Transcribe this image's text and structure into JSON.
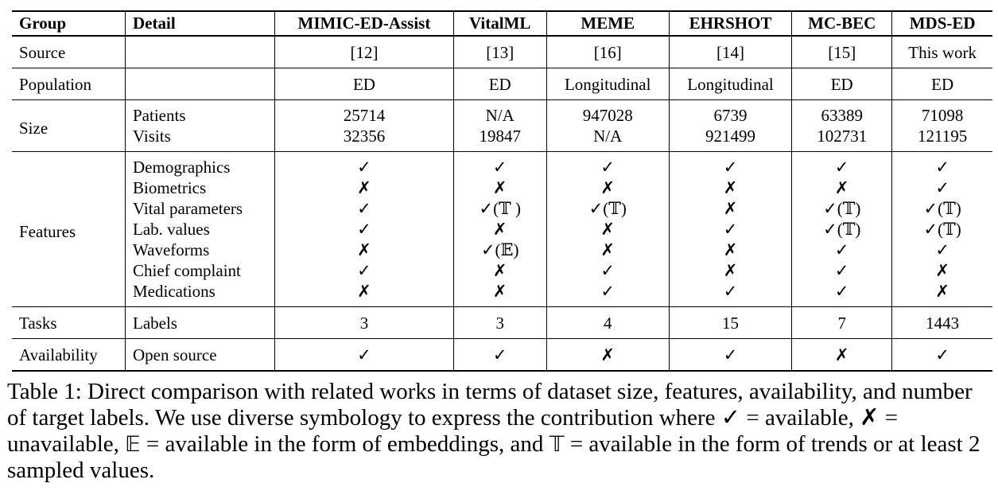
{
  "table": {
    "headers": [
      "Group",
      "Detail",
      "MIMIC-ED-Assist",
      "VitalML",
      "MEME",
      "EHRSHOT",
      "MC-BEC",
      "MDS-ED"
    ],
    "source": {
      "group": "Source",
      "detail": "",
      "values": [
        "[12]",
        "[13]",
        "[16]",
        "[14]",
        "[15]",
        "This work"
      ]
    },
    "population": {
      "group": "Population",
      "detail": "",
      "values": [
        "ED",
        "ED",
        "Longitudinal",
        "Longitudinal",
        "ED",
        "ED"
      ]
    },
    "size": {
      "group": "Size",
      "rows": [
        {
          "detail": "Patients",
          "values": [
            "25714",
            "N/A",
            "947028",
            "6739",
            "63389",
            "71098"
          ]
        },
        {
          "detail": "Visits",
          "values": [
            "32356",
            "19847",
            "N/A",
            "921499",
            "102731",
            "121195"
          ]
        }
      ]
    },
    "features": {
      "group": "Features",
      "rows": [
        {
          "detail": "Demographics",
          "values": [
            "✓",
            "✓",
            "✓",
            "✓",
            "✓",
            "✓"
          ]
        },
        {
          "detail": "Biometrics",
          "values": [
            "✗",
            "✗",
            "✗",
            "✗",
            "✗",
            "✓"
          ]
        },
        {
          "detail": "Vital parameters",
          "values": [
            "✓",
            "✓(𝕋 )",
            "✓(𝕋)",
            "✗",
            "✓(𝕋)",
            "✓(𝕋)"
          ]
        },
        {
          "detail": "Lab. values",
          "values": [
            "✓",
            "✗",
            "✗",
            "✓",
            "✓(𝕋)",
            "✓(𝕋)"
          ]
        },
        {
          "detail": "Waveforms",
          "values": [
            "✗",
            "✓(𝔼)",
            "✗",
            "✗",
            "✓",
            "✓"
          ]
        },
        {
          "detail": "Chief complaint",
          "values": [
            "✓",
            "✗",
            "✓",
            "✗",
            "✓",
            "✗"
          ]
        },
        {
          "detail": "Medications",
          "values": [
            "✗",
            "✗",
            "✓",
            "✓",
            "✓",
            "✗"
          ]
        }
      ]
    },
    "tasks": {
      "group": "Tasks",
      "detail": "Labels",
      "values": [
        "3",
        "3",
        "4",
        "15",
        "7",
        "1443"
      ]
    },
    "availability": {
      "group": "Availability",
      "detail": "Open source",
      "values": [
        "✓",
        "✓",
        "✗",
        "✓",
        "✗",
        "✓"
      ]
    }
  },
  "caption": {
    "prefix": "Table 1: Direct comparison with related works in terms of dataset size, features, availability, and number of target labels. We use diverse symbology to express the contribution where ",
    "check": "✓",
    "check_text": " = available, ",
    "cross": "✗",
    "cross_text": " = unavailable, ",
    "e_sym": "𝔼",
    "e_text": " = available in the form of embeddings, and ",
    "t_sym": "𝕋",
    "t_text": " = available in the form of trends or at least 2 sampled values."
  }
}
